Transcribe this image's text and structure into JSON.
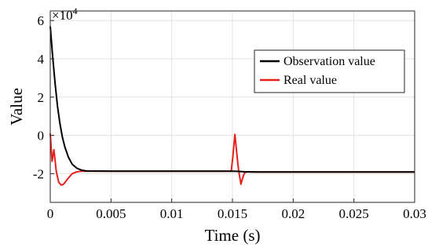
{
  "chart_data": {
    "type": "line",
    "xlabel": "Time (s)",
    "ylabel": "Value",
    "y_multiplier": {
      "base": "×10",
      "exponent": "4"
    },
    "xlim": [
      0,
      0.03
    ],
    "ylim": [
      -3.5,
      6.5
    ],
    "x_ticks": [
      0,
      0.005,
      0.01,
      0.015,
      0.02,
      0.025,
      0.03
    ],
    "x_tick_labels": [
      "0",
      "0.005",
      "0.01",
      "0.015",
      "0.02",
      "0.025",
      "0.03"
    ],
    "y_ticks": [
      -2,
      0,
      2,
      4,
      6
    ],
    "y_tick_labels": [
      "-2",
      "0",
      "2",
      "4",
      "6"
    ],
    "grid": true,
    "legend_position": "top-right",
    "series": [
      {
        "name": "Observation value",
        "color": "#000000",
        "x": [
          0,
          0.0001,
          0.0002,
          0.0004,
          0.0006,
          0.0008,
          0.001,
          0.0012,
          0.0015,
          0.0018,
          0.0022,
          0.0026,
          0.003,
          0.005,
          0.01,
          0.015,
          0.0155,
          0.016,
          0.0165,
          0.017,
          0.02,
          0.025,
          0.03
        ],
        "y": [
          5.7,
          4.9,
          4.1,
          2.7,
          1.5,
          0.6,
          -0.1,
          -0.6,
          -1.15,
          -1.5,
          -1.72,
          -1.82,
          -1.86,
          -1.87,
          -1.87,
          -1.87,
          -1.88,
          -1.9,
          -1.91,
          -1.91,
          -1.91,
          -1.91,
          -1.91
        ]
      },
      {
        "name": "Real value",
        "color": "#e8201c",
        "x": [
          0,
          0.00015,
          0.0003,
          0.0005,
          0.0007,
          0.0009,
          0.0011,
          0.0014,
          0.0018,
          0.0022,
          0.0026,
          0.003,
          0.005,
          0.01,
          0.0149,
          0.01505,
          0.0152,
          0.01535,
          0.0155,
          0.0157,
          0.01585,
          0.016,
          0.0162,
          0.0165,
          0.017,
          0.02,
          0.025,
          0.03
        ],
        "y": [
          0.1,
          -1.35,
          -0.75,
          -1.9,
          -2.45,
          -2.6,
          -2.55,
          -2.3,
          -2.0,
          -1.9,
          -1.87,
          -1.87,
          -1.87,
          -1.87,
          -1.87,
          -1.0,
          0.05,
          -0.9,
          -1.8,
          -2.55,
          -2.2,
          -1.95,
          -1.9,
          -1.9,
          -1.91,
          -1.91,
          -1.91,
          -1.91
        ]
      }
    ]
  }
}
